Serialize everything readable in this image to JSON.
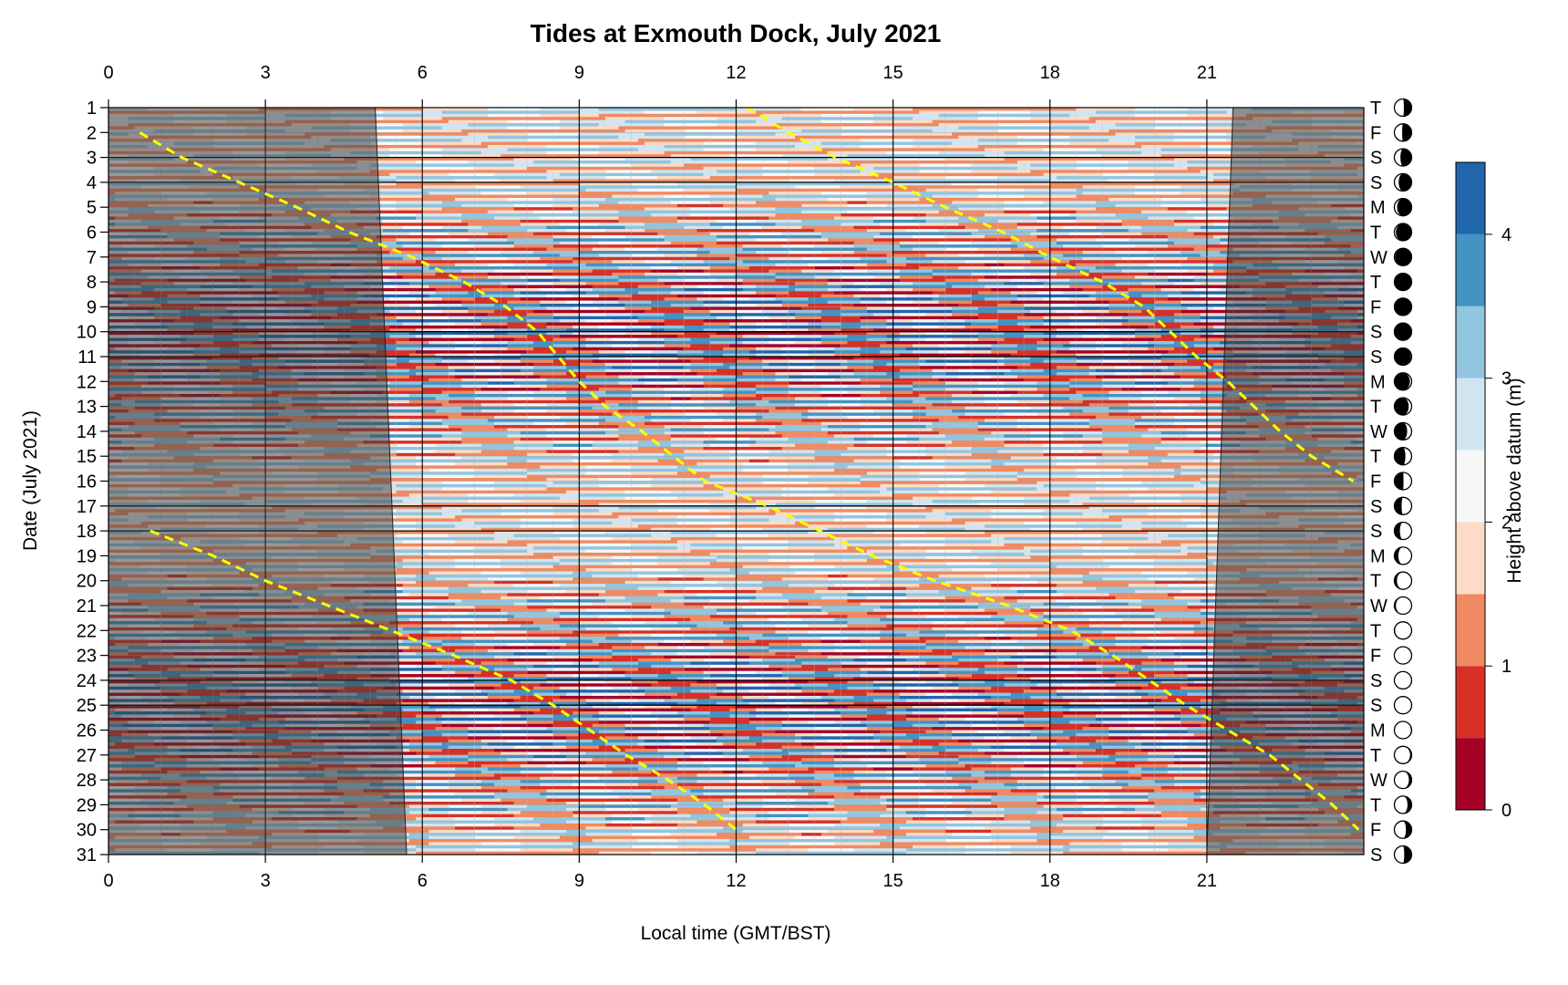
{
  "chart_data": {
    "type": "heatmap",
    "title": "Tides at Exmouth Dock, July 2021",
    "xlabel": "Local time (GMT/BST)",
    "ylabel": "Date (July 2021)",
    "xlim": [
      0,
      24
    ],
    "ylim": [
      1,
      31
    ],
    "x_ticks": [
      0,
      3,
      6,
      9,
      12,
      15,
      18,
      21
    ],
    "x_tick_labels": [
      "0",
      "3",
      "6",
      "9",
      "12",
      "15",
      "18",
      "21"
    ],
    "days": [
      {
        "date": "1",
        "weekday": "T"
      },
      {
        "date": "2",
        "weekday": "F"
      },
      {
        "date": "3",
        "weekday": "S"
      },
      {
        "date": "4",
        "weekday": "S"
      },
      {
        "date": "5",
        "weekday": "M"
      },
      {
        "date": "6",
        "weekday": "T"
      },
      {
        "date": "7",
        "weekday": "W"
      },
      {
        "date": "8",
        "weekday": "T"
      },
      {
        "date": "9",
        "weekday": "F"
      },
      {
        "date": "10",
        "weekday": "S"
      },
      {
        "date": "11",
        "weekday": "S"
      },
      {
        "date": "12",
        "weekday": "M"
      },
      {
        "date": "13",
        "weekday": "T"
      },
      {
        "date": "14",
        "weekday": "W"
      },
      {
        "date": "15",
        "weekday": "T"
      },
      {
        "date": "16",
        "weekday": "F"
      },
      {
        "date": "17",
        "weekday": "S"
      },
      {
        "date": "18",
        "weekday": "S"
      },
      {
        "date": "19",
        "weekday": "M"
      },
      {
        "date": "20",
        "weekday": "T"
      },
      {
        "date": "21",
        "weekday": "W"
      },
      {
        "date": "22",
        "weekday": "T"
      },
      {
        "date": "23",
        "weekday": "F"
      },
      {
        "date": "24",
        "weekday": "S"
      },
      {
        "date": "25",
        "weekday": "S"
      },
      {
        "date": "26",
        "weekday": "M"
      },
      {
        "date": "27",
        "weekday": "T"
      },
      {
        "date": "28",
        "weekday": "W"
      },
      {
        "date": "29",
        "weekday": "T"
      },
      {
        "date": "30",
        "weekday": "F"
      },
      {
        "date": "31",
        "weekday": "S"
      }
    ],
    "moon_illuminated_fraction": [
      0.55,
      0.45,
      0.35,
      0.25,
      0.16,
      0.09,
      0.04,
      0.01,
      0.0,
      0.01,
      0.04,
      0.1,
      0.17,
      0.26,
      0.36,
      0.47,
      0.58,
      0.68,
      0.77,
      0.85,
      0.91,
      0.96,
      0.99,
      1.0,
      0.99,
      0.96,
      0.91,
      0.84,
      0.76,
      0.67,
      0.57
    ],
    "moon_waxing": [
      false,
      false,
      false,
      false,
      false,
      false,
      false,
      false,
      true,
      true,
      true,
      true,
      true,
      true,
      true,
      true,
      true,
      true,
      true,
      true,
      true,
      true,
      true,
      true,
      false,
      false,
      false,
      false,
      false,
      false,
      false
    ],
    "weekend_dates": [
      3,
      4,
      10,
      11,
      17,
      18,
      24,
      25
    ],
    "darkness_before": {
      "start_date": 1,
      "start_hour": 5.1,
      "end_date": 31,
      "end_hour": 5.7
    },
    "darkness_after": {
      "start_date": 1,
      "start_hour": 21.5,
      "end_date": 31,
      "end_hour": 21.0
    },
    "colorbar": {
      "label": "Height above datum (m)",
      "ticks": [
        0,
        1,
        2,
        3,
        4
      ],
      "levels": [
        0,
        0.5,
        1,
        1.5,
        2,
        2.5,
        3,
        3.5,
        4,
        4.5
      ],
      "colors": [
        "#a50026",
        "#d73027",
        "#ef8a62",
        "#fddbc7",
        "#f7f7f7",
        "#d1e5f0",
        "#92c5de",
        "#4393c3",
        "#2166ac"
      ]
    },
    "high_water_times": [
      {
        "date": 1,
        "hour": 12.2
      },
      {
        "date": 2,
        "hour": 0.6
      },
      {
        "date": 2,
        "hour": 13.0
      },
      {
        "date": 3,
        "hour": 1.4
      },
      {
        "date": 3,
        "hour": 13.9
      },
      {
        "date": 4,
        "hour": 2.5
      },
      {
        "date": 4,
        "hour": 15.0
      },
      {
        "date": 5,
        "hour": 3.6
      },
      {
        "date": 5,
        "hour": 16.0
      },
      {
        "date": 6,
        "hour": 4.6
      },
      {
        "date": 6,
        "hour": 17.1
      },
      {
        "date": 7,
        "hour": 5.8
      },
      {
        "date": 7,
        "hour": 18.0
      },
      {
        "date": 8,
        "hour": 6.8
      },
      {
        "date": 8,
        "hour": 19.0
      },
      {
        "date": 9,
        "hour": 7.6
      },
      {
        "date": 9,
        "hour": 19.8
      },
      {
        "date": 10,
        "hour": 8.2
      },
      {
        "date": 10,
        "hour": 20.3
      },
      {
        "date": 11,
        "hour": 8.6
      },
      {
        "date": 11,
        "hour": 20.8
      },
      {
        "date": 12,
        "hour": 9.0
      },
      {
        "date": 12,
        "hour": 21.4
      },
      {
        "date": 13,
        "hour": 9.5
      },
      {
        "date": 13,
        "hour": 21.9
      },
      {
        "date": 14,
        "hour": 10.2
      },
      {
        "date": 14,
        "hour": 22.4
      },
      {
        "date": 15,
        "hour": 10.8
      },
      {
        "date": 15,
        "hour": 23.0
      },
      {
        "date": 16,
        "hour": 11.4
      },
      {
        "date": 16,
        "hour": 23.8
      },
      {
        "date": 17,
        "hour": 12.6
      },
      {
        "date": 18,
        "hour": 0.8
      },
      {
        "date": 18,
        "hour": 13.6
      },
      {
        "date": 19,
        "hour": 2.0
      },
      {
        "date": 19,
        "hour": 14.6
      },
      {
        "date": 20,
        "hour": 3.0
      },
      {
        "date": 20,
        "hour": 15.8
      },
      {
        "date": 21,
        "hour": 4.2
      },
      {
        "date": 21,
        "hour": 17.2
      },
      {
        "date": 22,
        "hour": 5.4
      },
      {
        "date": 22,
        "hour": 18.4
      },
      {
        "date": 23,
        "hour": 6.6
      },
      {
        "date": 23,
        "hour": 19.2
      },
      {
        "date": 24,
        "hour": 7.7
      },
      {
        "date": 24,
        "hour": 19.9
      },
      {
        "date": 25,
        "hour": 8.5
      },
      {
        "date": 25,
        "hour": 20.6
      },
      {
        "date": 26,
        "hour": 9.2
      },
      {
        "date": 26,
        "hour": 21.4
      },
      {
        "date": 27,
        "hour": 9.9
      },
      {
        "date": 27,
        "hour": 22.2
      },
      {
        "date": 28,
        "hour": 10.7
      },
      {
        "date": 28,
        "hour": 22.8
      },
      {
        "date": 29,
        "hour": 11.4
      },
      {
        "date": 29,
        "hour": 23.4
      },
      {
        "date": 30,
        "hour": 12.0
      },
      {
        "date": 30,
        "hour": 23.9
      }
    ],
    "tide_model": {
      "mean_level_m": 2.2,
      "amplitude_min_m": 1.0,
      "amplitude_max_m": 2.0,
      "peak_amplitude_dates": [
        10,
        25
      ],
      "semidiurnal_period_hours": 12.42
    },
    "high_water_line_color": "#ffff00",
    "grid": true
  }
}
